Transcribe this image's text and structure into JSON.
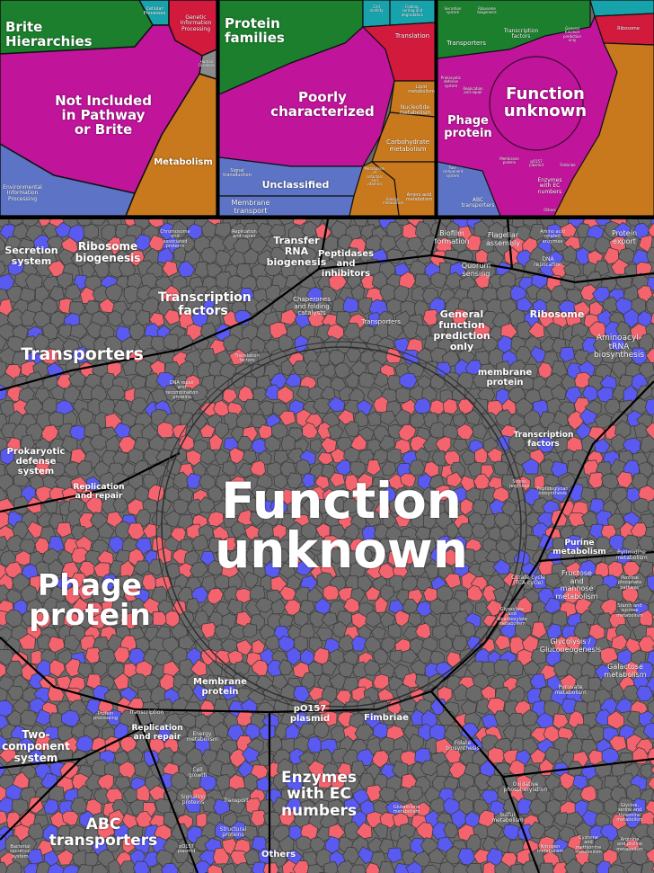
{
  "colors": {
    "background": "#000000",
    "cell_gray": "#6a6a6a",
    "cell_red": "#f4646e",
    "cell_blue": "#5a5af0",
    "brite_green": "#1b7f2d",
    "not_included_magenta": "#c0149a",
    "metabolism_orange": "#c9791d",
    "env_info_blue": "#5d74c6",
    "cellular_teal": "#17a3ac",
    "genetic_info_red": "#d11a3c",
    "human_diseases_gray": "#8a8a8a"
  },
  "panel1": {
    "labels": {
      "brite": "Brite\nHierarchies",
      "not_included": "Not Included\nin Pathway\nor Brite",
      "metabolism": "Metabolism",
      "env": "Environmental\nInformation\nProcessing",
      "cellular": "Cellular\nProcesses",
      "genetic": "Genetic\nInformation\nProcessing",
      "human": "Human\nDiseases"
    }
  },
  "panel2": {
    "labels": {
      "protein_families": "Protein\nfamilies",
      "poorly": "Poorly\ncharacterized",
      "unclassified": "Unclassified",
      "membrane": "Membrane\ntransport",
      "signal": "Signal\ntransduction",
      "translation": "Translation",
      "carb": "Carbohydrate\nmetabolism",
      "nucleotide": "Nucleotide\nmetabolism",
      "lipid": "Lipid\nmetabolism",
      "amino": "Amino acid\nmetabolism",
      "energy": "Energy\nmetabolism",
      "cofactors": "Metabolism\nof\ncofactors\nand\nvitamins",
      "cell_motility": "Cell\nmotility",
      "folding": "Folding,\nsorting and\ndegradation"
    }
  },
  "panel3": {
    "labels": {
      "function_unknown": "Function\nunknown",
      "phage": "Phage\nprotein",
      "transporters": "Transporters",
      "transcription": "Transcription\nfactors",
      "secretion": "Secretion\nsystem",
      "ribosome_bio": "Ribosome\nbiogenesis",
      "ribosome": "Ribosome",
      "two_comp": "Two-\ncomponent\nsystem",
      "abc": "ABC\ntransporters",
      "enzymes": "Enzymes\nwith EC\nnumbers",
      "others": "Others",
      "fimbriae": "Fimbriae",
      "general": "General\nfunction\nprediction\nonly",
      "prokaryotic": "Prokaryotic\ndefense\nsystem",
      "replication": "Replication\nand repair",
      "membrane": "Membrane\nprotein",
      "po157": "pO157\nplasmid"
    }
  },
  "main": {
    "big": {
      "function_unknown": "Function\nunknown",
      "phage": "Phage\nprotein",
      "transporters": "Transporters",
      "transcription": "Transcription\nfactors",
      "enzymes": "Enzymes\nwith EC\nnumbers",
      "abc": "ABC\ntransporters"
    },
    "medium": {
      "secretion": "Secretion\nsystem",
      "ribosome_bio": "Ribosome\nbiogenesis",
      "trna": "Transfer\nRNA\nbiogenesis",
      "peptidases": "Peptidases\nand\ninhibitors",
      "biofilm": "Biofilm\nformation",
      "flagellar": "Flagellar\nassembly",
      "quorum": "Quorum\nsensing",
      "protein_export": "Protein\nexport",
      "general": "General\nfunction\nprediction\nonly",
      "ribosome": "Ribosome",
      "aminoacyl": "Aminoacyl-\ntRNA\nbiosynthesis",
      "membrane_protein_r": "membrane\nprotein",
      "transcription_r": "Transcription\nfactors",
      "prokaryotic": "Prokaryotic\ndefense\nsystem",
      "replication_l": "Replication\nand repair",
      "membrane_protein": "Membrane\nprotein",
      "po157": "pO157\nplasmid",
      "fimbriae": "Fimbriae",
      "two_comp": "Two-\ncomponent\nsystem",
      "replication_b": "Replication\nand repair",
      "others": "Others",
      "purine": "Purine\nmetabolism",
      "fructose": "Fructose\nand\nmannose\nmetabolism",
      "glycolysis": "Glycolysis /\nGluconeogenesis",
      "galactose": "Galactose\nmetabolism",
      "chaperones": "Chaperones\nand folding\ncatalysts",
      "transporters_small": "Transporters"
    },
    "small": {
      "chromosome": "Chromosome\nand\nassociated\nproteins",
      "replication_t": "Replication\nand repair",
      "dna_repair": "DNA repair\nand\nrecombination\nproteins",
      "translation_f": "Translation\nfactors",
      "amino_rel": "Amino acid\nrelated\nenzymes",
      "dna_rep": "DNA\nreplication",
      "pyrimidine": "Pyrimidine\nmetabolism",
      "pentose": "Pentose\nphosphate\npathway",
      "starch": "Starch and\nsucrose\nmetabolism",
      "citrate": "Citrate cycle\n(TCA cycle)",
      "glyoxylate": "Glyoxylate\nand\ndicarboxylate\nmetabolism",
      "pyruvate": "Pyruvate\nmetabolism",
      "folate": "Folate\nbiosynthesis",
      "oxidative": "Oxidative\nphosphorylation",
      "sulfur": "Sulfur\nmetabolism",
      "nitrogen": "Nitrogen\nmetabolism",
      "glutathione": "Glutathione\nmetabolism",
      "arginine": "Arginine\nand proline\nmetabolism",
      "glycine": "Glycine,\nserine and\nthreonine\nmetabolism",
      "cysteine": "Cysteine\nand\nmethionine\nmetabolism",
      "energy": "Energy\nmetabolism",
      "transcription_b": "Transcription",
      "protein_processing": "Protein\nprocessing",
      "cell_growth": "Cell\ngrowth",
      "signaling": "Signaling\nproteins",
      "transport": "Transport",
      "structural": "Structural\nproteins",
      "po157_small": "pO157\nplasmid",
      "bacterial_secretion": "Bacterial\nsecretion\nsystem",
      "stress": "Stress\nresponse",
      "peptidoglycan": "Peptidoglycan\nbiosynthesis"
    }
  }
}
